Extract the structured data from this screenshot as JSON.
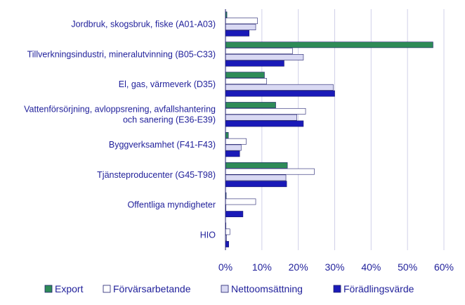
{
  "chart_data": {
    "type": "bar",
    "orientation": "horizontal",
    "categories": [
      [
        "Jordbruk, skogsbruk, fiske (A01-A03)"
      ],
      [
        "Tillverkningsindustri, mineralutvinning (B05-C33)"
      ],
      [
        "El, gas, värmeverk (D35)"
      ],
      [
        "Vattenförsörjning, avloppsrening, avfallshantering",
        "och sanering (E36-E39)"
      ],
      [
        "Byggverksamhet (F41-F43)"
      ],
      [
        "Tjänsteproducenter (G45-T98)"
      ],
      [
        "Offentliga myndigheter"
      ],
      [
        "HIO"
      ]
    ],
    "series": [
      {
        "name": "Export",
        "color": "#2e8b57",
        "values": [
          0.4,
          57.0,
          10.7,
          13.8,
          0.8,
          17.0,
          0.2,
          0.1
        ]
      },
      {
        "name": "Förvärsarbetande",
        "color": "#ffffff",
        "values": [
          8.8,
          18.4,
          11.3,
          22.0,
          5.7,
          24.4,
          8.3,
          1.2
        ]
      },
      {
        "name": "Nettoomsättning",
        "color": "#d9d9f3",
        "values": [
          8.3,
          21.4,
          29.6,
          19.6,
          4.3,
          16.6,
          0.1,
          0.3
        ]
      },
      {
        "name": "Förädlingsvärde",
        "color": "#1a1ab8",
        "values": [
          6.5,
          16.1,
          30.0,
          21.4,
          3.9,
          16.8,
          4.8,
          0.9
        ]
      }
    ],
    "xlim": [
      0,
      60
    ],
    "xticks": [
      "0%",
      "10%",
      "20%",
      "30%",
      "40%",
      "50%",
      "60%"
    ],
    "grid": true,
    "legend_position": "bottom"
  }
}
